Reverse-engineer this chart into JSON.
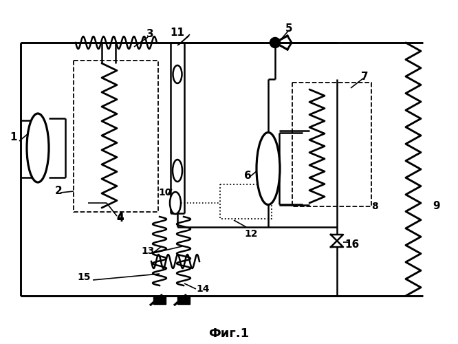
{
  "title": "Фиг.1",
  "bg": "#ffffff",
  "lc": "#000000"
}
